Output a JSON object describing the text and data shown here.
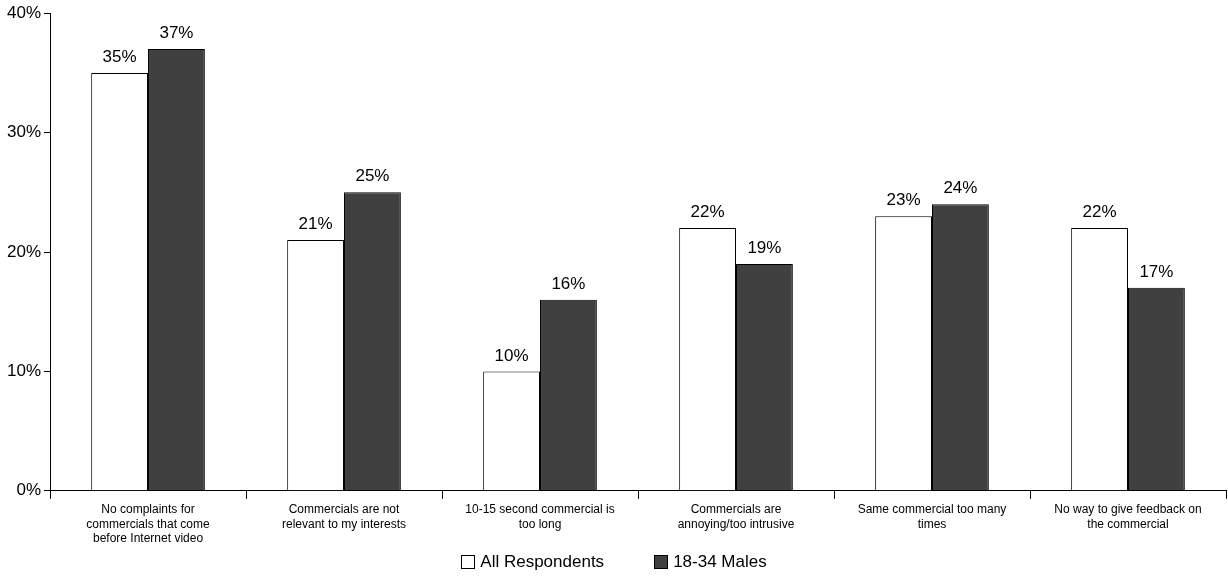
{
  "chart_data": {
    "type": "bar",
    "categories": [
      "No complaints for commercials that come before Internet video",
      "Commercials are not relevant to my interests",
      "10-15 second commercial is too long",
      "Commercials are annoying/too intrusive",
      "Same commercial too many times",
      "No way to give feedback on the commercial"
    ],
    "series": [
      {
        "name": "All Respondents",
        "color": "#ffffff",
        "values": [
          35,
          21,
          10,
          22,
          23,
          22
        ],
        "value_labels": [
          "35%",
          "21%",
          "10%",
          "22%",
          "23%",
          "22%"
        ]
      },
      {
        "name": "18-34 Males",
        "color": "#404040",
        "values": [
          37,
          25,
          16,
          19,
          24,
          17
        ],
        "value_labels": [
          "37%",
          "25%",
          "16%",
          "19%",
          "24%",
          "17%"
        ]
      }
    ],
    "ylim": [
      0,
      40
    ],
    "yticks": [
      {
        "value": 0,
        "label": "0%"
      },
      {
        "value": 10,
        "label": "10%"
      },
      {
        "value": 20,
        "label": "20%"
      },
      {
        "value": 30,
        "label": "30%"
      },
      {
        "value": 40,
        "label": "40%"
      }
    ],
    "legend": "bottom"
  }
}
